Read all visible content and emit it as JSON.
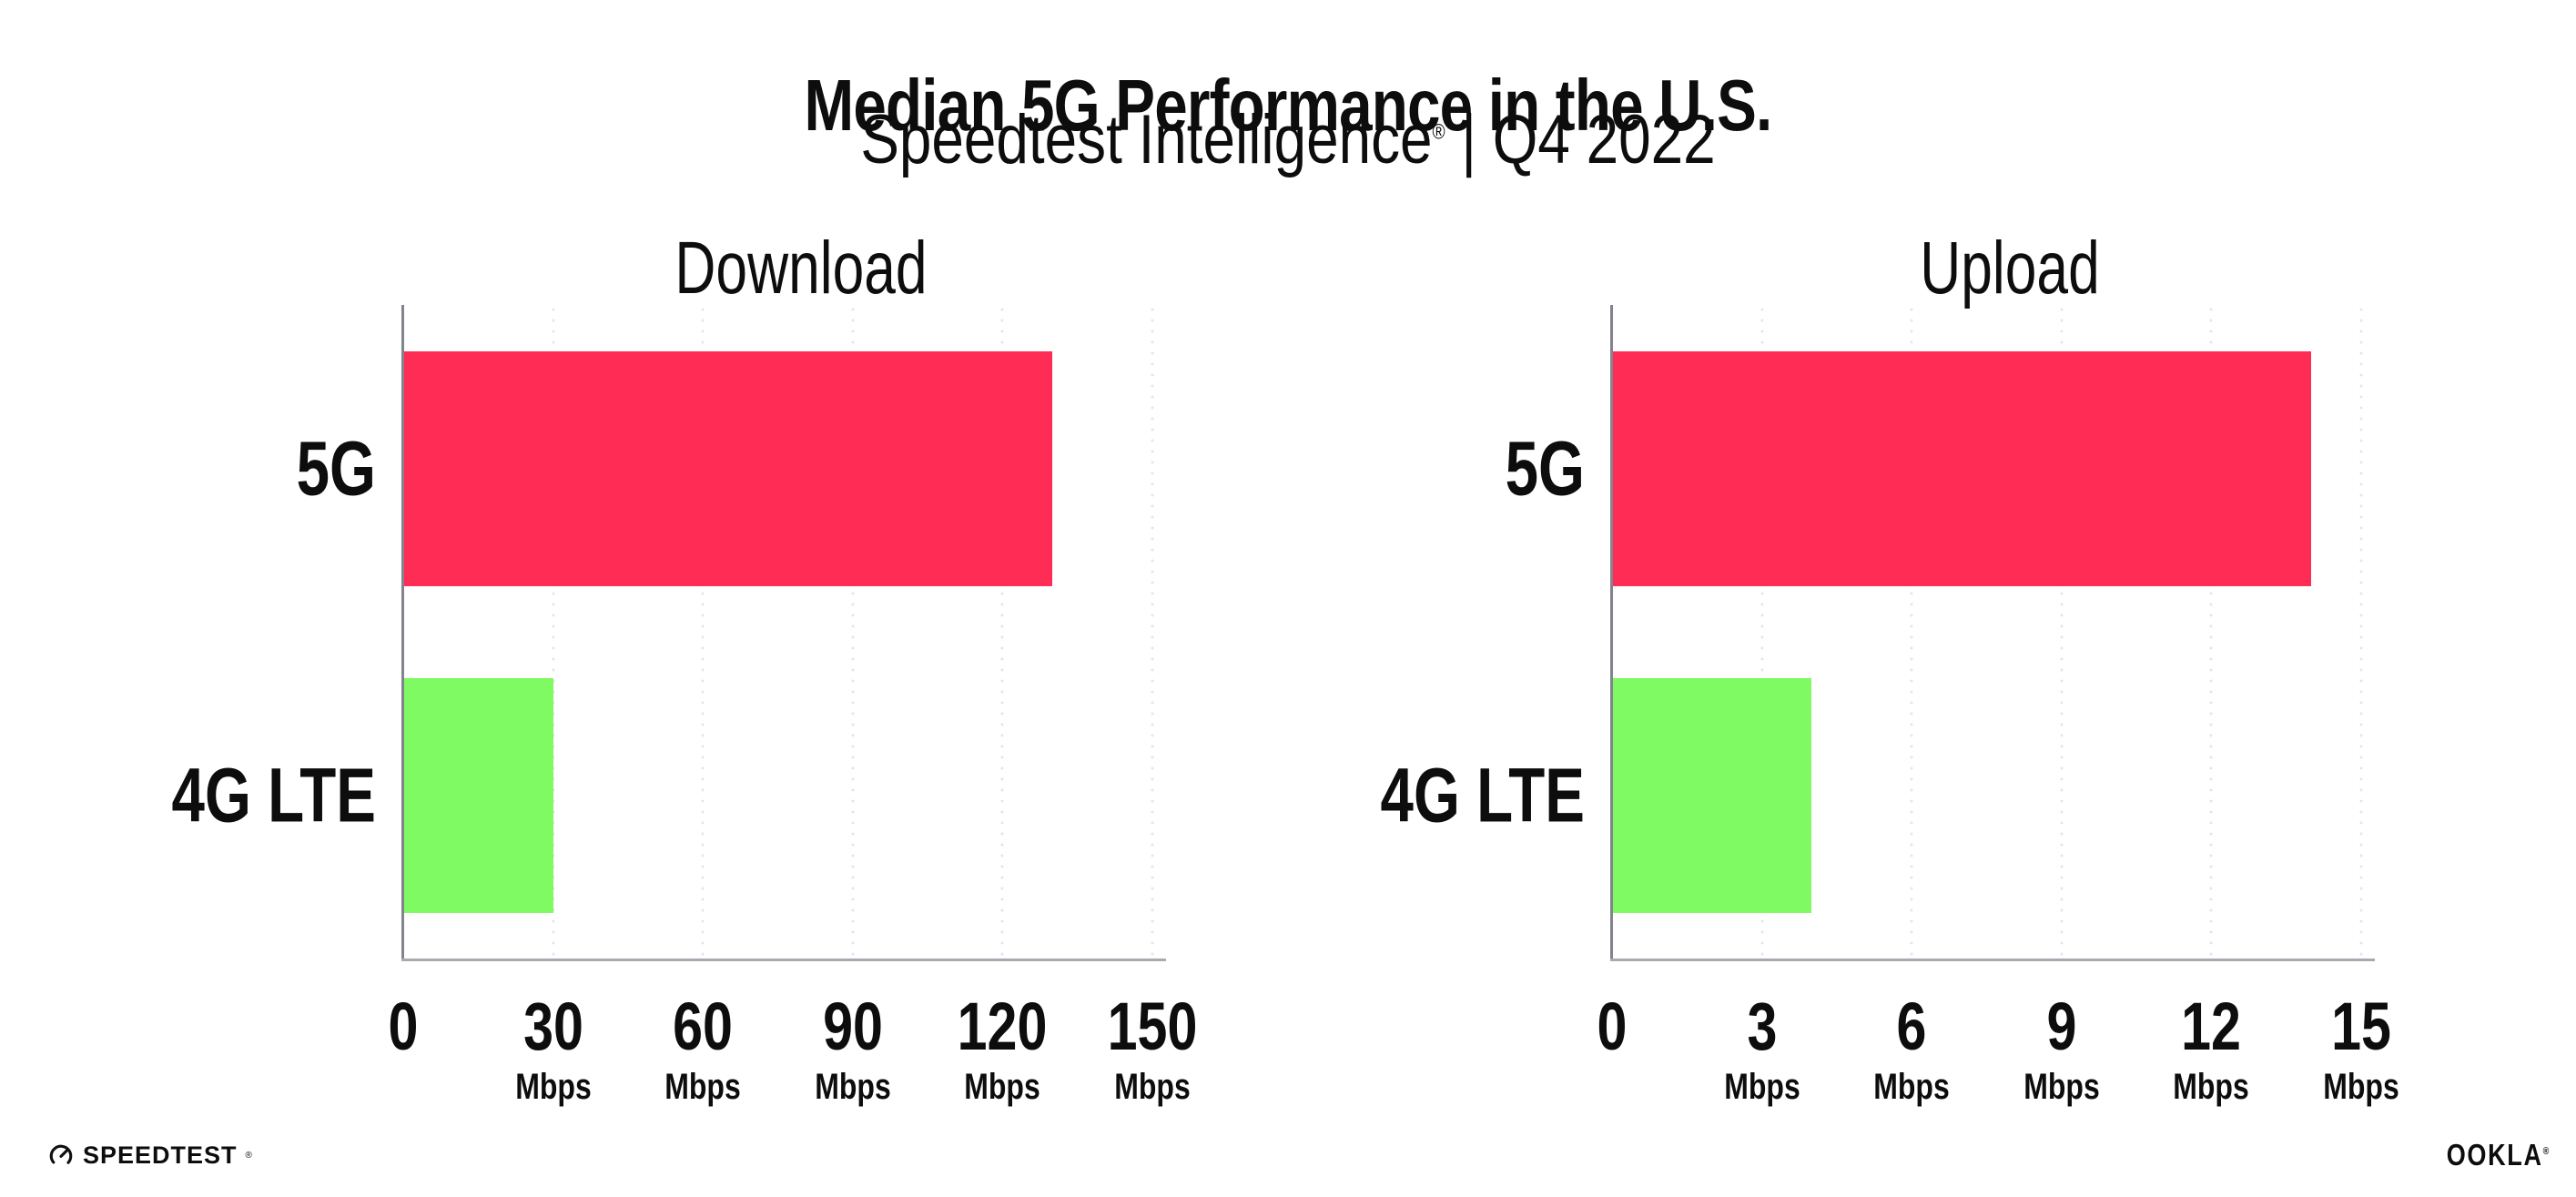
{
  "header": {
    "title": "Median 5G Performance in the U.S.",
    "subtitle_brand": "Speedtest Intelligence",
    "subtitle_reg": "®",
    "subtitle_rest": " | Q4 2022"
  },
  "chart_data": [
    {
      "type": "bar",
      "orientation": "horizontal",
      "title": "Download",
      "categories": [
        "5G",
        "4G LTE"
      ],
      "values": [
        130,
        30
      ],
      "unit": "Mbps",
      "xlabel_unit": "Mbps",
      "xticks": [
        0,
        30,
        60,
        90,
        120,
        150
      ],
      "xlim": [
        0,
        152
      ],
      "bar_colors": [
        "#ff2d55",
        "#80fa63"
      ],
      "gridlines": "dotted-vertical",
      "legend": "none"
    },
    {
      "type": "bar",
      "orientation": "horizontal",
      "title": "Upload",
      "categories": [
        "5G",
        "4G LTE"
      ],
      "values": [
        14,
        4
      ],
      "unit": "Mbps",
      "xlabel_unit": "Mbps",
      "xticks": [
        0,
        3,
        6,
        9,
        12,
        15
      ],
      "xlim": [
        0,
        15.2
      ],
      "bar_colors": [
        "#ff2d55",
        "#80fa63"
      ],
      "gridlines": "dotted-vertical",
      "legend": "none"
    }
  ],
  "footer": {
    "speedtest_label": "SPEEDTEST",
    "speedtest_reg": "®",
    "ookla_label": "OOKLA",
    "ookla_reg": "®"
  }
}
